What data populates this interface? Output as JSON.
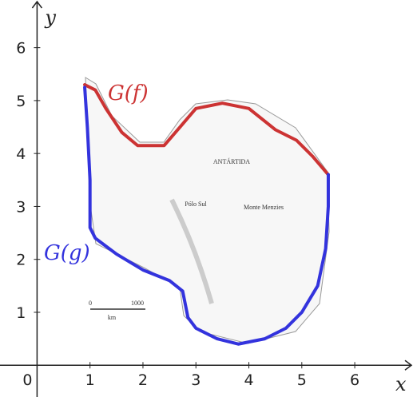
{
  "chart_data": {
    "type": "line",
    "x_label": "x",
    "y_label": "y",
    "xlim": [
      -0.7,
      7.1
    ],
    "ylim": [
      -0.6,
      6.9
    ],
    "xticks": [
      0,
      1,
      2,
      3,
      4,
      5,
      6
    ],
    "yticks": [
      1,
      2,
      3,
      4,
      5,
      6
    ],
    "series": [
      {
        "name": "G(f)",
        "color": "#cc3333",
        "x": [
          0.9,
          1.1,
          1.3,
          1.6,
          1.9,
          2.4,
          2.7,
          3.0,
          3.5,
          4.0,
          4.5,
          4.9,
          5.2,
          5.5
        ],
        "values": [
          5.3,
          5.2,
          4.85,
          4.4,
          4.15,
          4.15,
          4.5,
          4.85,
          4.95,
          4.85,
          4.45,
          4.25,
          3.95,
          3.6
        ]
      },
      {
        "name": "G(g)",
        "color": "#3333dd",
        "x": [
          0.9,
          0.95,
          1.0,
          1.0,
          1.1,
          1.5,
          2.0,
          2.5,
          2.75,
          2.85,
          3.0,
          3.4,
          3.8,
          4.3,
          4.7,
          5.0,
          5.3,
          5.45,
          5.5,
          5.5
        ],
        "values": [
          5.25,
          4.5,
          3.5,
          2.6,
          2.4,
          2.1,
          1.8,
          1.6,
          1.4,
          0.9,
          0.7,
          0.5,
          0.4,
          0.5,
          0.7,
          1.0,
          1.5,
          2.2,
          3.0,
          3.6
        ]
      }
    ],
    "annotations": [
      "ANTÁRTIDA",
      "Pólo Sul",
      "Monte Menzies",
      "0",
      "1000",
      "km"
    ]
  }
}
